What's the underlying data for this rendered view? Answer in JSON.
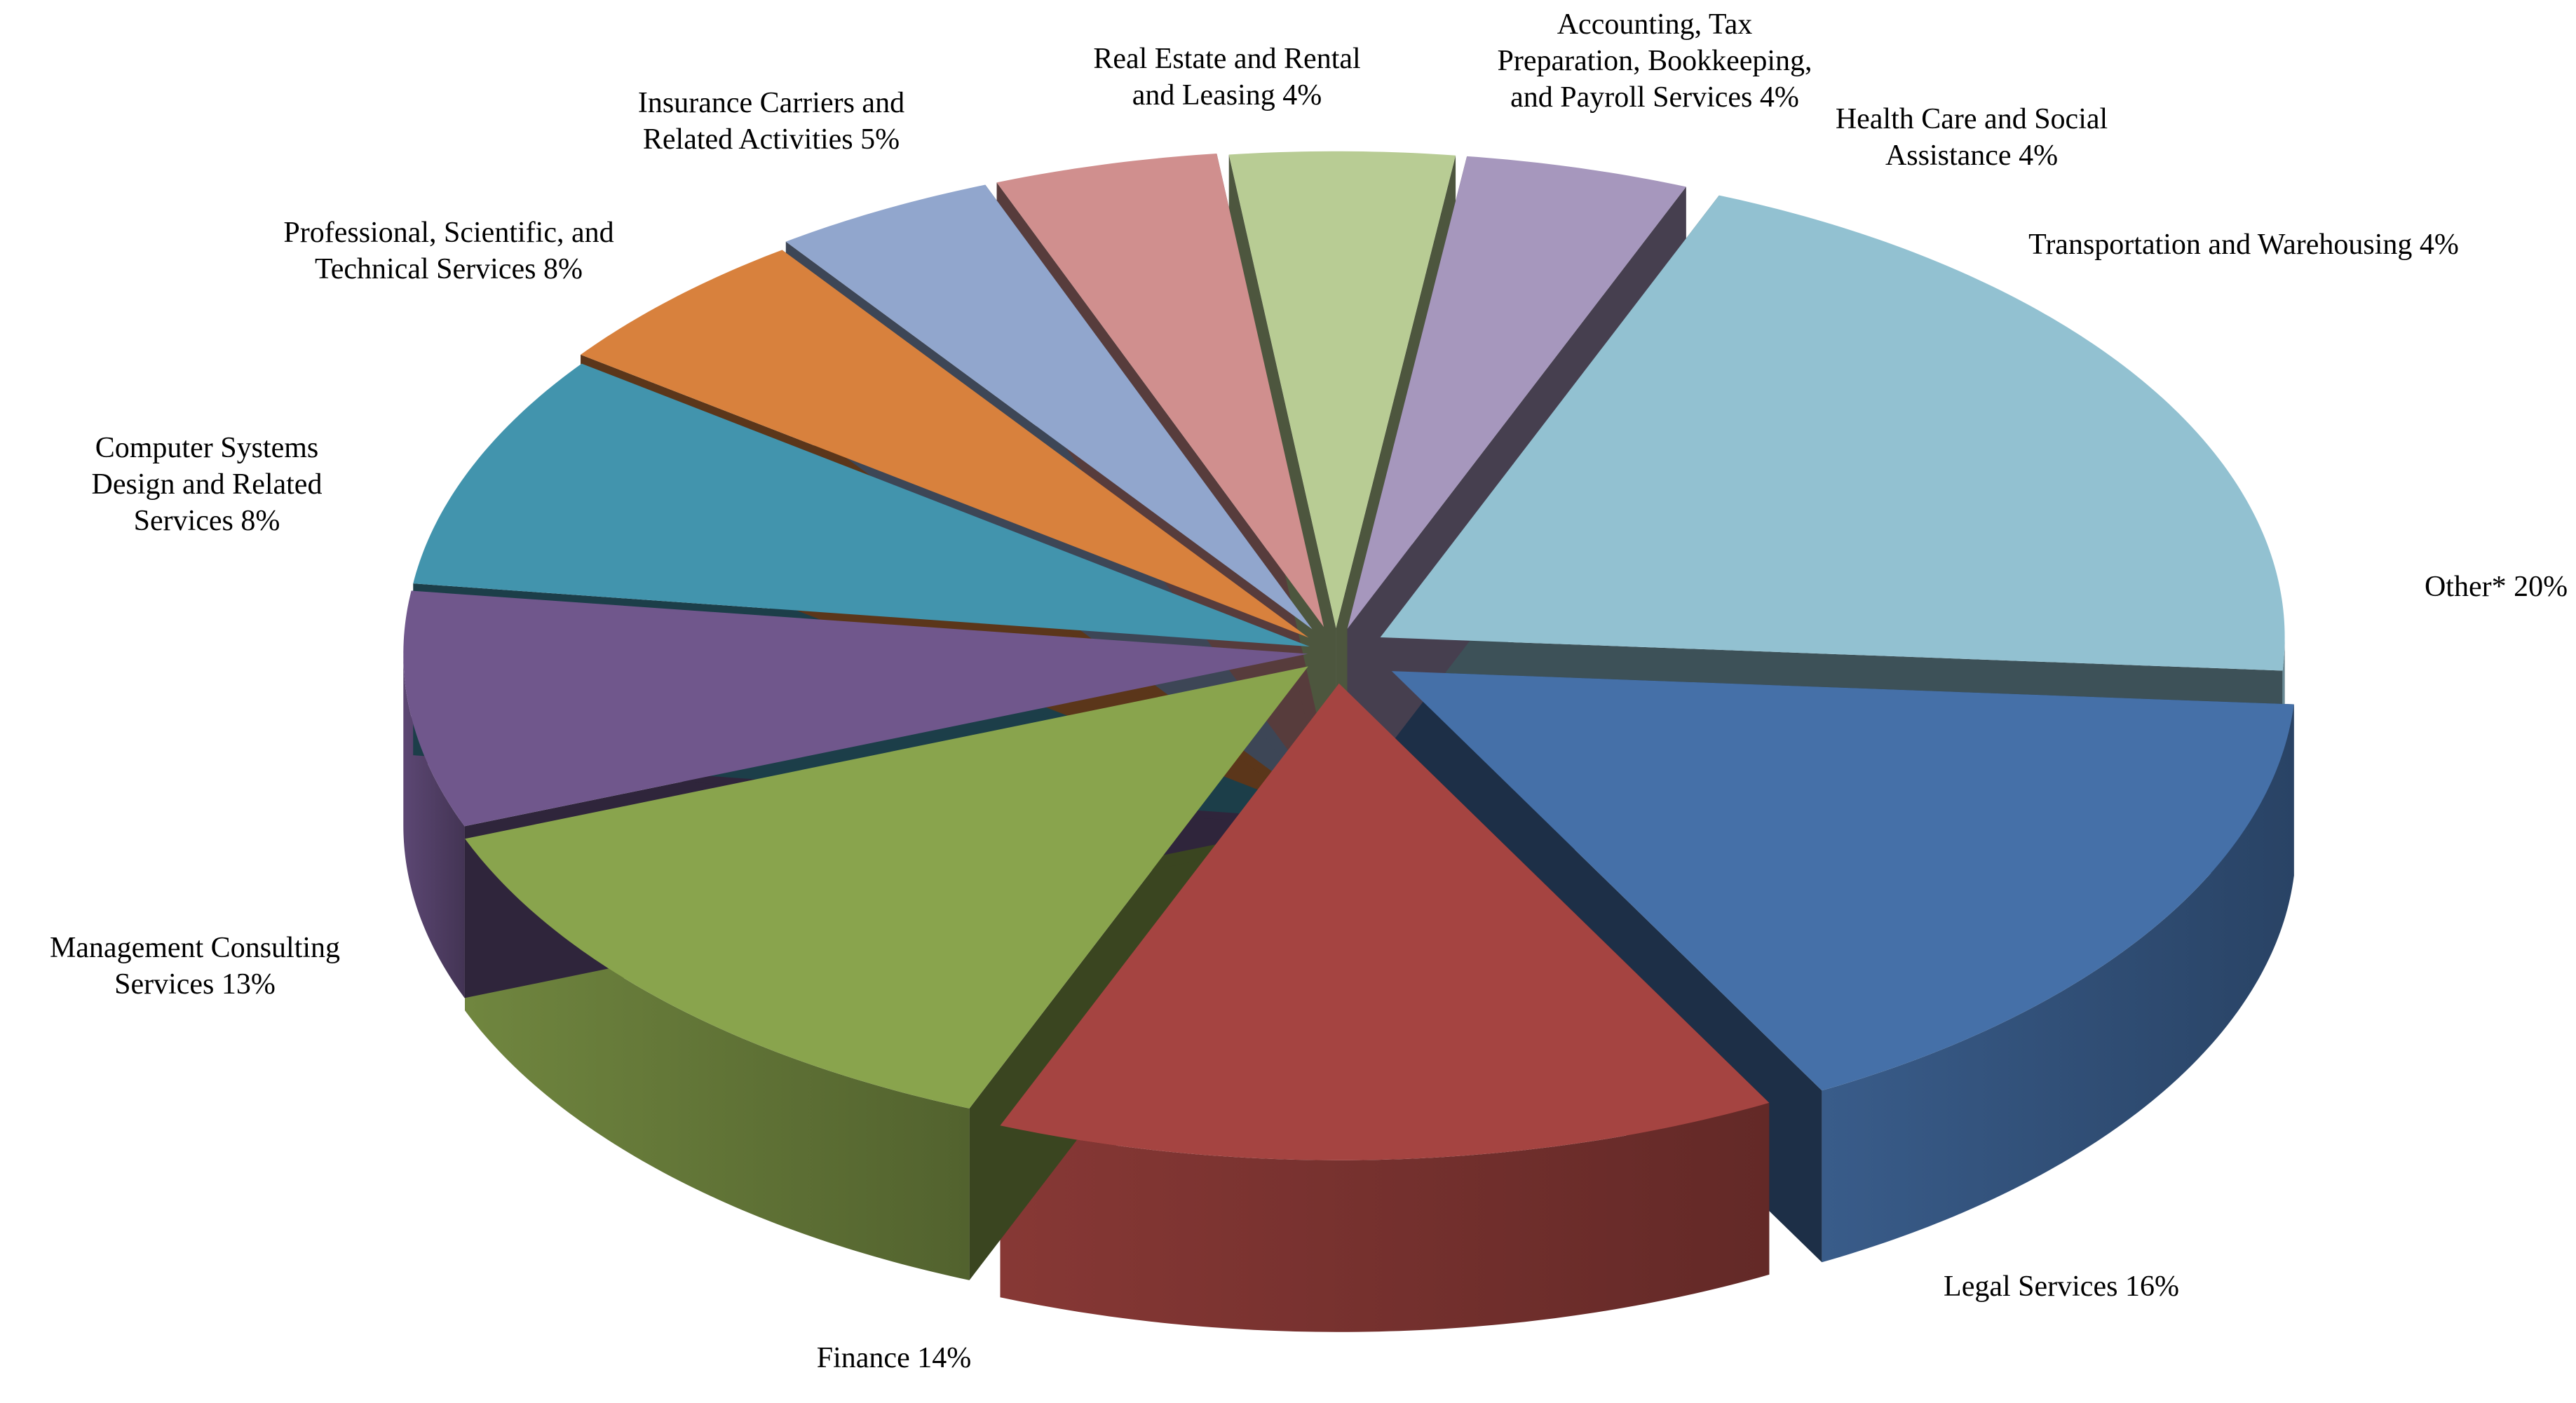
{
  "chart_data": {
    "type": "pie",
    "style": "3d-exploded",
    "title": "",
    "slices": [
      {
        "label_lines": [
          "Other* 20%"
        ],
        "category": "Other*",
        "value": 20,
        "color": "#92c1d1"
      },
      {
        "label_lines": [
          "Legal Services 16%"
        ],
        "category": "Legal Services",
        "value": 16,
        "color": "#4570a8"
      },
      {
        "label_lines": [
          "Finance 14%"
        ],
        "category": "Finance",
        "value": 14,
        "color": "#a54441"
      },
      {
        "label_lines": [
          "Management Consulting",
          "Services 13%"
        ],
        "category": "Management Consulting Services",
        "value": 13,
        "color": "#89a44d"
      },
      {
        "label_lines": [
          "Computer Systems",
          "Design and Related",
          "Services 8%"
        ],
        "category": "Computer Systems Design and Related Services",
        "value": 8,
        "color": "#70578c"
      },
      {
        "label_lines": [
          "Professional, Scientific, and",
          "Technical Services 8%"
        ],
        "category": "Professional, Scientific, and Technical Services",
        "value": 8,
        "color": "#4294ad"
      },
      {
        "label_lines": [
          "Insurance Carriers and",
          "Related Activities 5%"
        ],
        "category": "Insurance Carriers and Related Activities",
        "value": 5,
        "color": "#d8813d"
      },
      {
        "label_lines": [
          "Real Estate and Rental",
          "and Leasing 4%"
        ],
        "category": "Real Estate and Rental and Leasing",
        "value": 4,
        "color": "#91a6cd"
      },
      {
        "label_lines": [
          "Accounting, Tax",
          "Preparation, Bookkeeping,",
          "and Payroll Services 4%"
        ],
        "category": "Accounting, Tax Preparation, Bookkeeping, and Payroll Services",
        "value": 4,
        "color": "#d08f8e"
      },
      {
        "label_lines": [
          "Health Care and Social",
          "Assistance 4%"
        ],
        "category": "Health Care and Social Assistance",
        "value": 4,
        "color": "#b8cc94"
      },
      {
        "label_lines": [
          "Transportation and Warehousing 4%"
        ],
        "category": "Transportation and Warehousing",
        "value": 4,
        "color": "#a697bd"
      }
    ]
  }
}
